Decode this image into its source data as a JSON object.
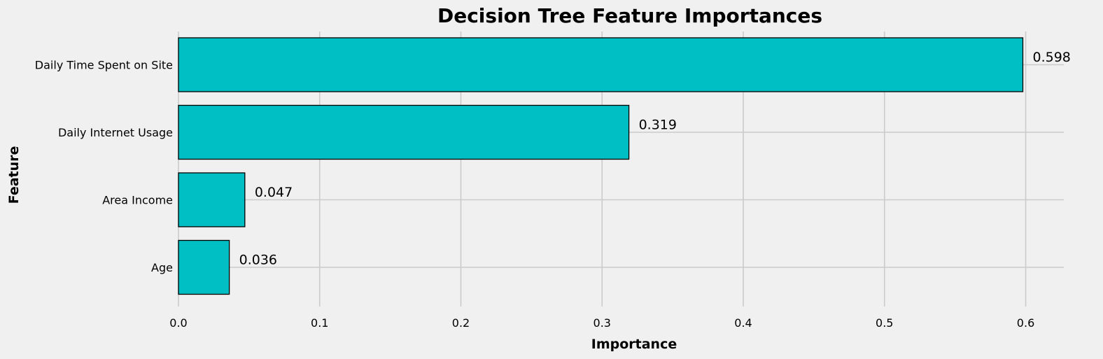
{
  "chart_data": {
    "type": "bar",
    "orientation": "horizontal",
    "title": "Decision Tree Feature Importances",
    "xlabel": "Importance",
    "ylabel": "Feature",
    "categories": [
      "Daily Time Spent on Site",
      "Daily Internet Usage",
      "Area Income",
      "Age"
    ],
    "values": [
      0.598,
      0.319,
      0.047,
      0.036
    ],
    "value_labels": [
      "0.598",
      "0.319",
      "0.047",
      "0.036"
    ],
    "xlim": [
      0,
      0.627
    ],
    "xticks": [
      0.0,
      0.1,
      0.2,
      0.3,
      0.4,
      0.5,
      0.6
    ],
    "xtick_labels": [
      "0.0",
      "0.1",
      "0.2",
      "0.3",
      "0.4",
      "0.5",
      "0.6"
    ],
    "grid": true,
    "legend": "none",
    "colors": {
      "bar": "#00bfc4",
      "bar_edge": "#000000",
      "background": "#f0f0f0",
      "grid": "#cbcbcb"
    }
  }
}
